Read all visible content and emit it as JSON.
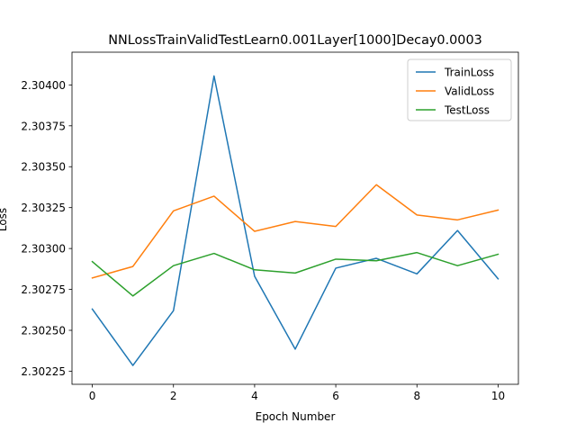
{
  "chart_data": {
    "type": "line",
    "title": "NNLossTrainValidTestLearn0.001Layer[1000]Decay0.0003",
    "xlabel": "Epoch Number",
    "ylabel": "Loss",
    "x": [
      0,
      1,
      2,
      3,
      4,
      5,
      6,
      7,
      8,
      9,
      10
    ],
    "xlim": [
      -0.5,
      10.5
    ],
    "ylim": [
      2.30217,
      2.3042
    ],
    "xticks": [
      0,
      2,
      4,
      6,
      8,
      10
    ],
    "yticks": [
      2.30225,
      2.3025,
      2.30275,
      2.303,
      2.30325,
      2.3035,
      2.30375,
      2.304
    ],
    "ytick_labels": [
      "2.30225",
      "2.30250",
      "2.30275",
      "2.30300",
      "2.30325",
      "2.30350",
      "2.30375",
      "2.30400"
    ],
    "grid": false,
    "legend_position": "top-right",
    "series": [
      {
        "name": "TrainLoss",
        "color": "#1f77b4",
        "values": [
          2.30263,
          2.302285,
          2.30262,
          2.304055,
          2.30283,
          2.302385,
          2.30288,
          2.30294,
          2.302845,
          2.30311,
          2.302815
        ]
      },
      {
        "name": "ValidLoss",
        "color": "#ff7f0e",
        "values": [
          2.30282,
          2.30289,
          2.30323,
          2.30332,
          2.303105,
          2.303165,
          2.303135,
          2.30339,
          2.303205,
          2.303175,
          2.303235
        ]
      },
      {
        "name": "TestLoss",
        "color": "#2ca02c",
        "values": [
          2.30292,
          2.30271,
          2.302895,
          2.30297,
          2.30287,
          2.30285,
          2.302935,
          2.302925,
          2.302975,
          2.302895,
          2.302965
        ]
      }
    ]
  }
}
